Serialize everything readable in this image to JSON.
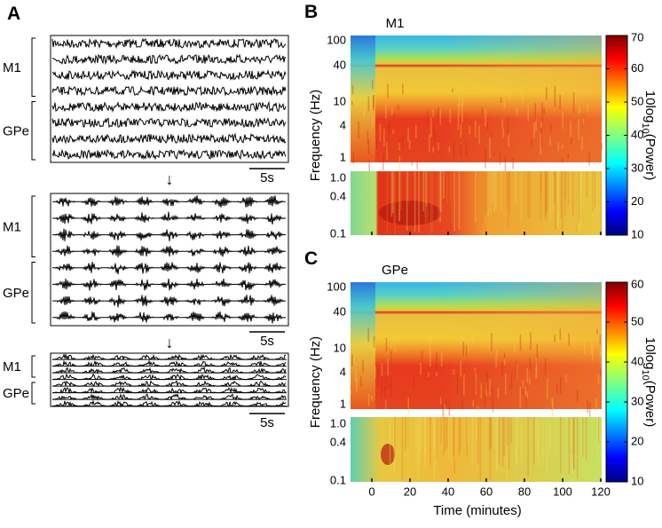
{
  "panel_a": {
    "label": "A",
    "blocks": [
      {
        "groups": [
          "M1",
          "GPe"
        ],
        "scale": "5s"
      },
      {
        "groups": [
          "M1",
          "GPe"
        ],
        "scale": "5s"
      },
      {
        "groups": [
          "M1",
          "GPe"
        ],
        "scale": "5s"
      }
    ],
    "arrows": [
      "↓",
      "↓"
    ]
  },
  "panel_b": {
    "label": "B",
    "title": "M1",
    "y_label": "Frequency (Hz)",
    "freq_ticks": [
      "100",
      "40",
      "10",
      "4",
      "1"
    ],
    "low_freq_ticks": [
      "1.0",
      "0.4",
      "0.1"
    ],
    "colorbar_ticks": [
      "70",
      "60",
      "50",
      "40",
      "30",
      "20",
      "10"
    ],
    "colorbar_label": {
      "base": "10log",
      "sub": "10",
      "rest": "(Power)"
    }
  },
  "panel_c": {
    "label": "C",
    "title": "GPe",
    "y_label": "Frequency (Hz)",
    "freq_ticks": [
      "100",
      "40",
      "10",
      "4",
      "1"
    ],
    "low_freq_ticks": [
      "1.0",
      "0.4",
      "0.1"
    ],
    "colorbar_ticks": [
      "60",
      "50",
      "40",
      "30",
      "20",
      "10"
    ],
    "colorbar_label": {
      "base": "10log",
      "sub": "10",
      "rest": "(Power)"
    },
    "time_ticks": [
      "0",
      "20",
      "40",
      "60",
      "80",
      "100",
      "120"
    ],
    "x_label": "Time (minutes)"
  }
}
